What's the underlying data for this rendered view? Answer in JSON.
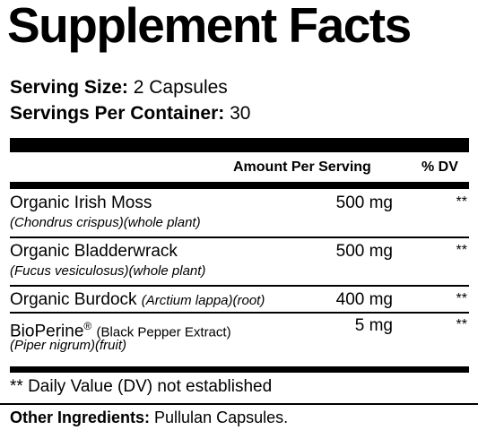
{
  "title": "Supplement Facts",
  "serving_size": {
    "label": "Serving Size:",
    "value": "2 Capsules"
  },
  "servings_per_container": {
    "label": "Servings Per Container:",
    "value": "30"
  },
  "header": {
    "amount": "Amount Per Serving",
    "dv": "% DV"
  },
  "ingredients": [
    {
      "name": "Organic Irish Moss",
      "inline_note": "",
      "source": "(Chondrus crispus)(whole plant)",
      "amount": "500 mg",
      "dv": "**"
    },
    {
      "name": "Organic Bladderwrack",
      "inline_note": "",
      "source": "(Fucus vesiculosus)(whole plant)",
      "amount": "500 mg",
      "dv": "**"
    },
    {
      "name": "Organic Burdock",
      "inline_note": "(Arctium lappa)(root)",
      "source": "",
      "amount": "400 mg",
      "dv": "**"
    },
    {
      "name": "BioPerine",
      "reg_mark": "®",
      "extra": "(Black Pepper Extract)",
      "source": "(Piper nigrum)(fruit)",
      "amount": "5 mg",
      "dv": "**"
    }
  ],
  "footnote": "** Daily Value (DV) not established",
  "other_ingredients": {
    "label": "Other Ingredients:",
    "value": "Pullulan Capsules."
  }
}
